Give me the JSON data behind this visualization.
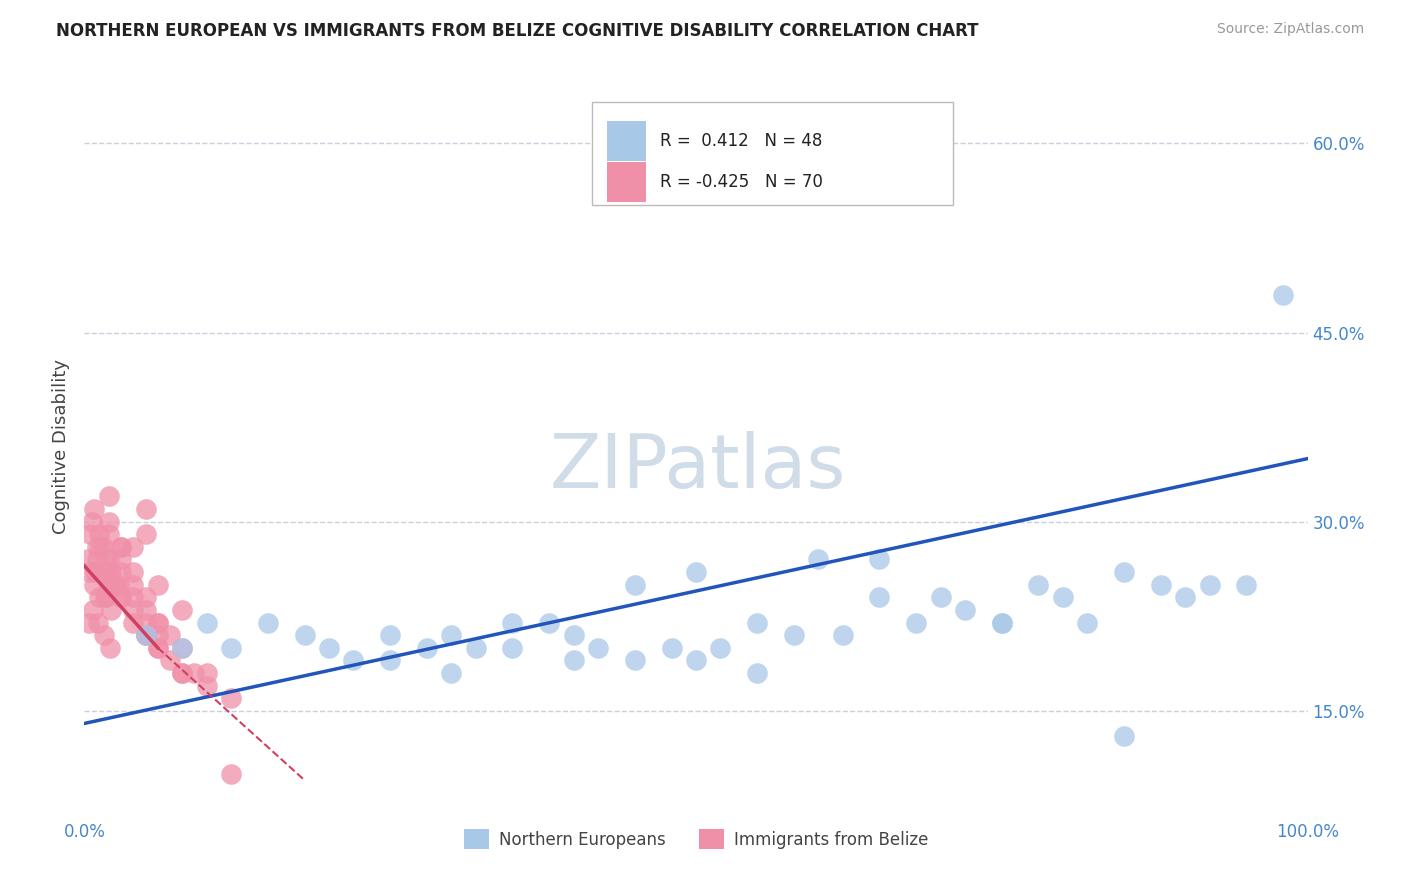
{
  "title": "NORTHERN EUROPEAN VS IMMIGRANTS FROM BELIZE COGNITIVE DISABILITY CORRELATION CHART",
  "source": "Source: ZipAtlas.com",
  "ylabel": "Cognitive Disability",
  "xlim": [
    0.0,
    100.0
  ],
  "ylim": [
    7.0,
    65.0
  ],
  "x_tick_labels": [
    "0.0%",
    "100.0%"
  ],
  "y_ticks_right": [
    15.0,
    30.0,
    45.0,
    60.0
  ],
  "y_tick_labels_right": [
    "15.0%",
    "30.0%",
    "45.0%",
    "60.0%"
  ],
  "grid_color": "#c8d0dc",
  "background_color": "#ffffff",
  "blue_color": "#a8c8e8",
  "pink_color": "#f090a8",
  "blue_line_color": "#2255bb",
  "pink_line_color": "#d04060",
  "watermark": "ZIPatlas",
  "watermark_color": "#d0dce8",
  "series1_label": "Northern Europeans",
  "series2_label": "Immigrants from Belize",
  "blue_scatter_x": [
    5,
    8,
    10,
    12,
    15,
    18,
    20,
    22,
    25,
    28,
    30,
    32,
    35,
    38,
    40,
    42,
    45,
    48,
    50,
    52,
    55,
    58,
    60,
    62,
    65,
    68,
    70,
    72,
    75,
    78,
    80,
    82,
    85,
    88,
    90,
    92,
    95,
    98,
    25,
    30,
    35,
    40,
    45,
    50,
    55,
    65,
    75,
    85
  ],
  "blue_scatter_y": [
    21,
    20,
    22,
    20,
    22,
    21,
    20,
    19,
    21,
    20,
    21,
    20,
    22,
    22,
    21,
    20,
    25,
    20,
    26,
    20,
    22,
    21,
    27,
    21,
    27,
    22,
    24,
    23,
    22,
    25,
    24,
    22,
    26,
    25,
    24,
    25,
    25,
    48,
    19,
    18,
    20,
    19,
    19,
    19,
    18,
    24,
    22,
    13
  ],
  "pink_scatter_x": [
    0.3,
    0.5,
    0.8,
    1,
    1.2,
    1.5,
    1.8,
    2,
    2.2,
    2.5,
    0.5,
    1,
    1.5,
    2,
    2.5,
    0.8,
    1.2,
    1.8,
    2.2,
    2.8,
    0.4,
    0.7,
    1.1,
    1.6,
    2.1,
    0.6,
    1.3,
    2.0,
    0.9,
    1.7,
    3,
    4,
    5,
    6,
    7,
    8,
    9,
    10,
    3,
    4,
    5,
    6,
    7,
    8,
    10,
    12,
    3,
    4,
    5,
    6,
    2,
    3,
    4,
    5,
    6,
    8,
    4,
    5,
    2,
    3,
    12,
    2,
    5,
    5,
    3,
    6,
    2,
    8,
    4,
    6
  ],
  "pink_scatter_y": [
    27,
    26,
    25,
    27,
    24,
    26,
    24,
    25,
    23,
    25,
    29,
    28,
    28,
    26,
    25,
    31,
    29,
    27,
    26,
    25,
    22,
    23,
    22,
    21,
    20,
    30,
    28,
    25,
    26,
    24,
    24,
    22,
    21,
    20,
    19,
    18,
    18,
    17,
    26,
    24,
    23,
    22,
    21,
    20,
    18,
    16,
    28,
    25,
    22,
    20,
    30,
    28,
    26,
    24,
    22,
    18,
    23,
    21,
    27,
    24,
    10,
    32,
    31,
    29,
    27,
    25,
    29,
    23,
    28,
    21
  ],
  "blue_line_x0": 0,
  "blue_line_y0": 14.0,
  "blue_line_x1": 100,
  "blue_line_y1": 35.0,
  "pink_solid_x0": 0,
  "pink_solid_y0": 26.5,
  "pink_solid_x1": 6,
  "pink_solid_y1": 20.0,
  "pink_dash_x0": 6,
  "pink_dash_y0": 20.0,
  "pink_dash_x1": 18,
  "pink_dash_y1": 9.5
}
